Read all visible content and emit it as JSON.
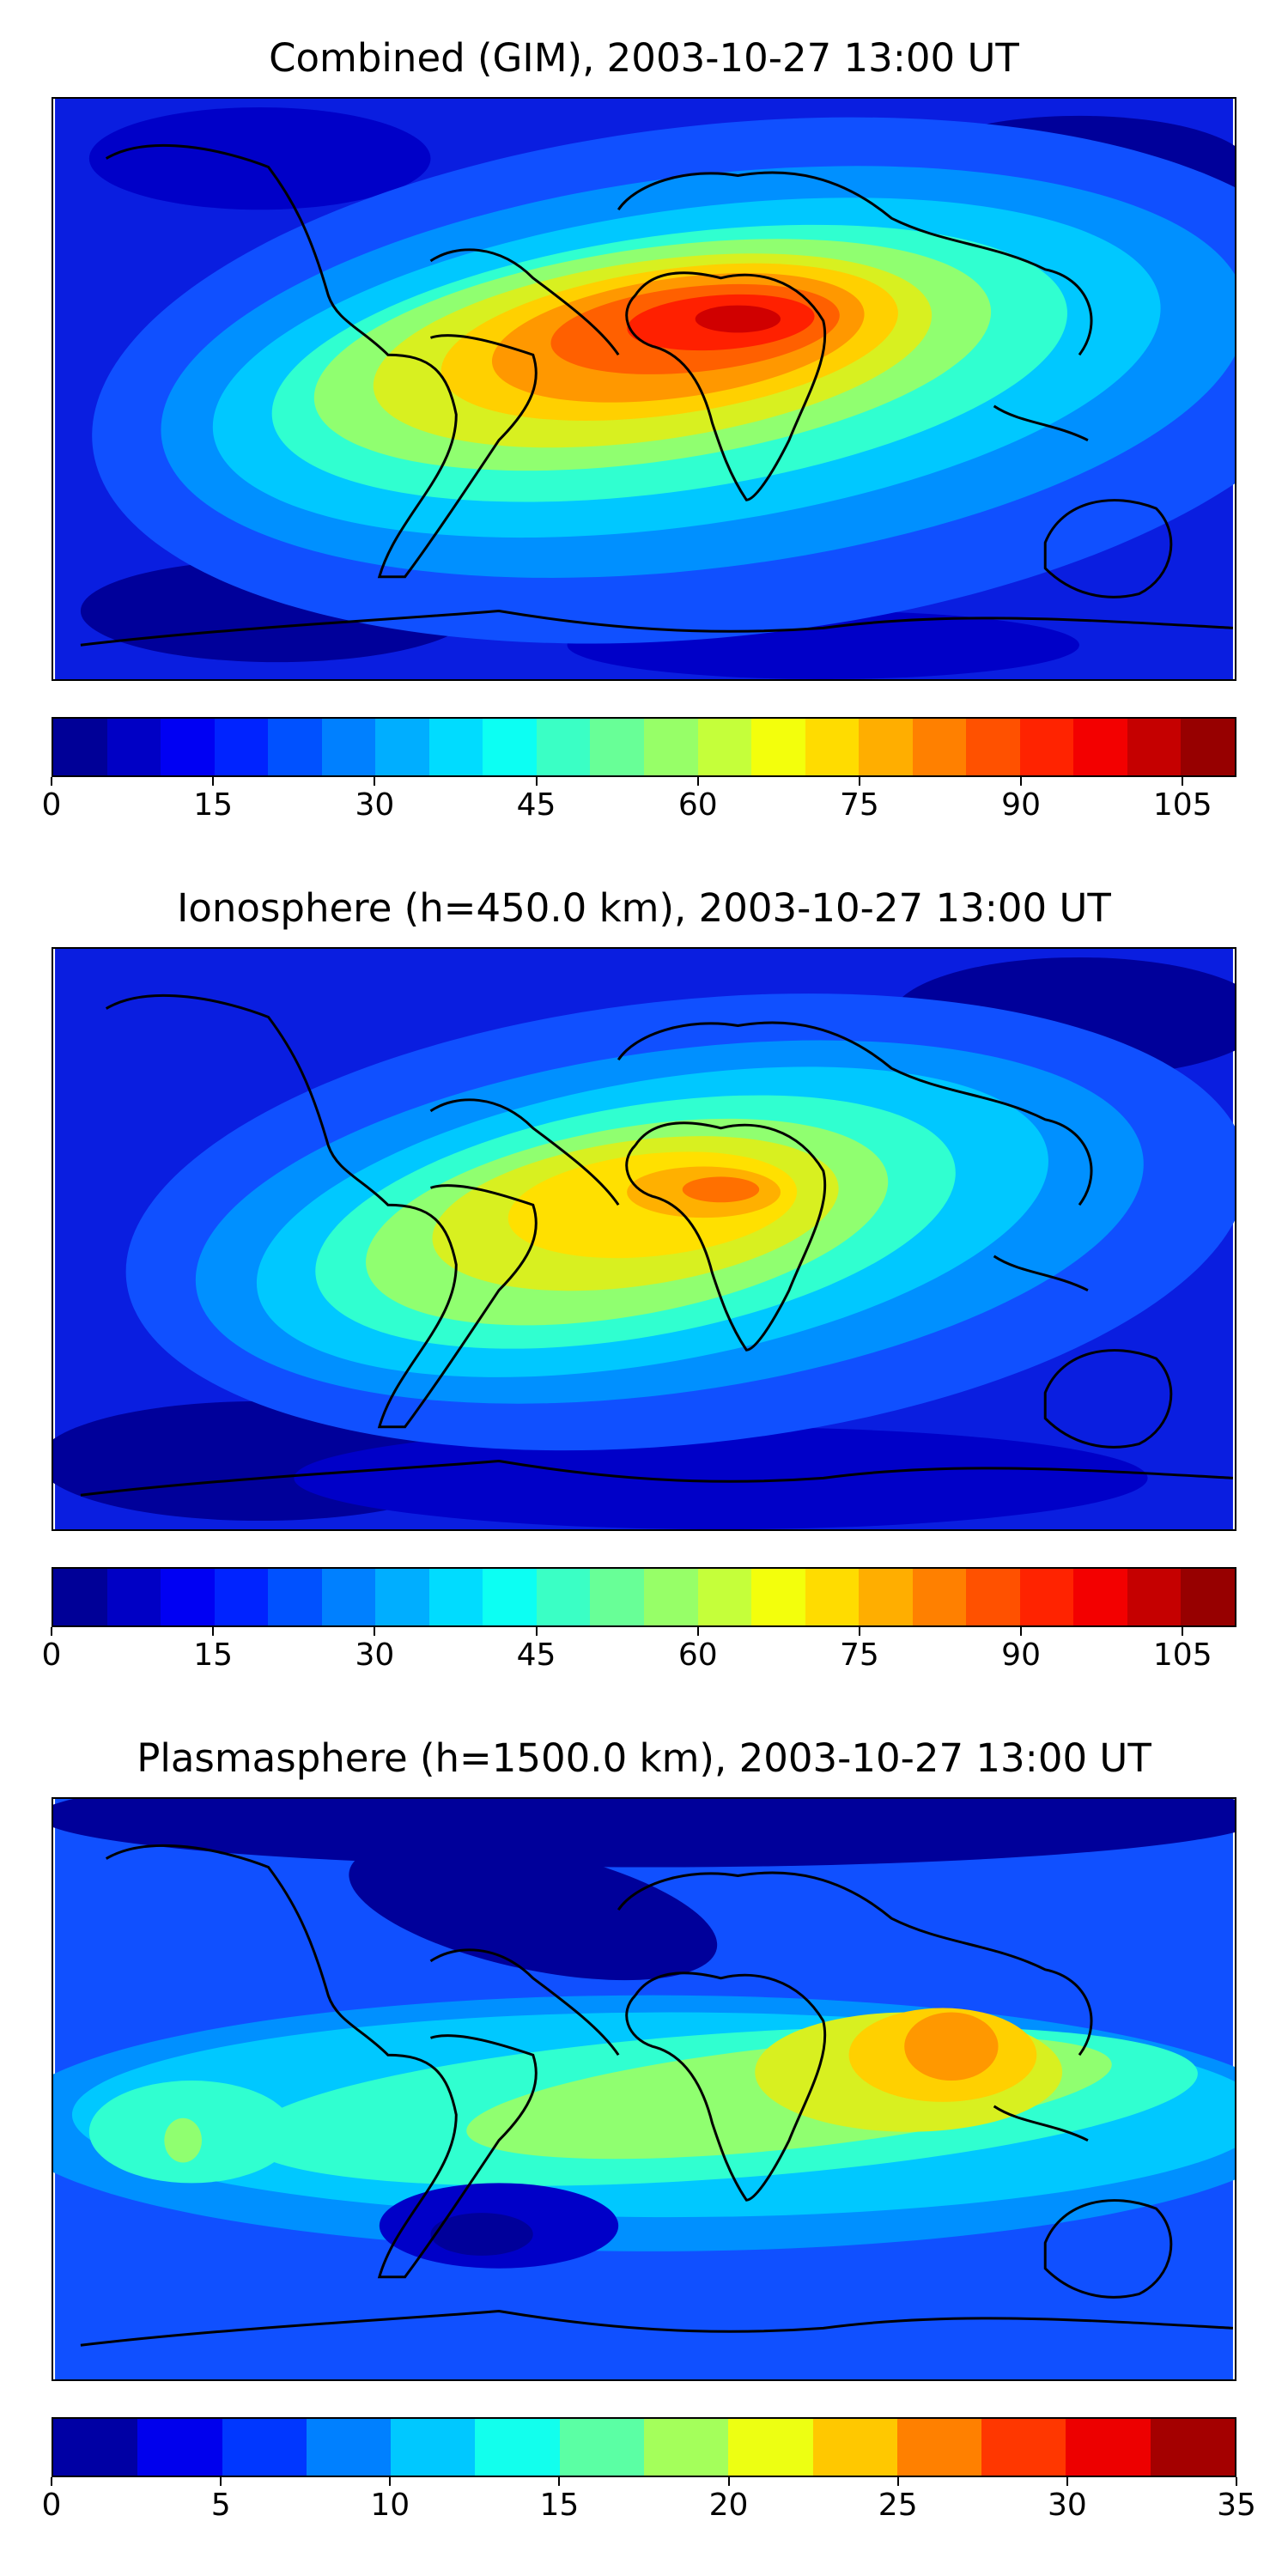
{
  "panels": [
    {
      "title": "Combined (GIM), 2003-10-27 13:00 UT",
      "colorbar": {
        "min": 0,
        "max": 110,
        "levels": 22,
        "ticks": [
          "0",
          "15",
          "30",
          "45",
          "60",
          "75",
          "90",
          "105"
        ],
        "tick_values": [
          0,
          15,
          30,
          45,
          60,
          75,
          90,
          105
        ]
      }
    },
    {
      "title": "Ionosphere  (h=450.0 km), 2003-10-27 13:00 UT",
      "colorbar": {
        "min": 0,
        "max": 110,
        "levels": 22,
        "ticks": [
          "0",
          "15",
          "30",
          "45",
          "60",
          "75",
          "90",
          "105"
        ],
        "tick_values": [
          0,
          15,
          30,
          45,
          60,
          75,
          90,
          105
        ]
      }
    },
    {
      "title": "Plasmasphere (h=1500.0 km), 2003-10-27 13:00 UT",
      "colorbar": {
        "min": 0,
        "max": 35,
        "levels": 14,
        "ticks": [
          "0",
          "5",
          "10",
          "15",
          "20",
          "25",
          "30",
          "35"
        ],
        "tick_values": [
          0,
          5,
          10,
          15,
          20,
          25,
          30,
          35
        ]
      }
    }
  ],
  "colormap": "jet"
}
